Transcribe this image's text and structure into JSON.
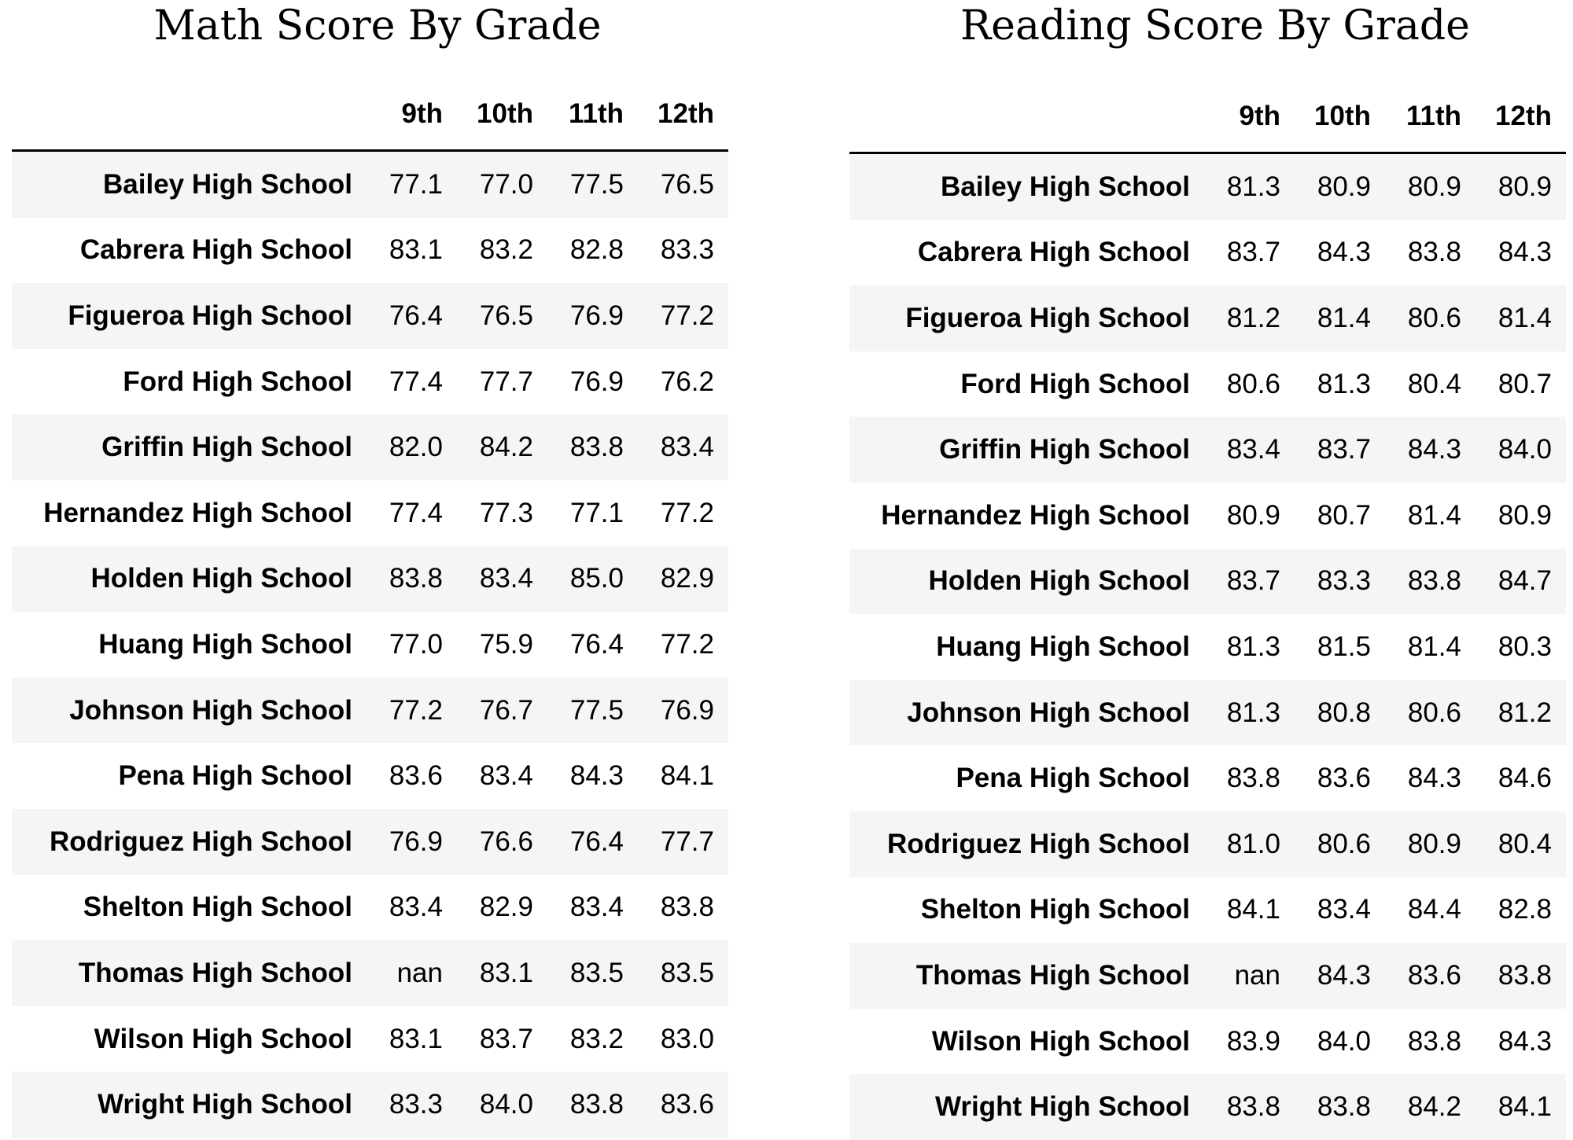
{
  "chart_data": [
    {
      "type": "table",
      "title": "Math Score By Grade",
      "columns": [
        "9th",
        "10th",
        "11th",
        "12th"
      ],
      "rows": [
        {
          "school": "Bailey High School",
          "values": [
            "77.1",
            "77.0",
            "77.5",
            "76.5"
          ]
        },
        {
          "school": "Cabrera High School",
          "values": [
            "83.1",
            "83.2",
            "82.8",
            "83.3"
          ]
        },
        {
          "school": "Figueroa High School",
          "values": [
            "76.4",
            "76.5",
            "76.9",
            "77.2"
          ]
        },
        {
          "school": "Ford High School",
          "values": [
            "77.4",
            "77.7",
            "76.9",
            "76.2"
          ]
        },
        {
          "school": "Griffin High School",
          "values": [
            "82.0",
            "84.2",
            "83.8",
            "83.4"
          ]
        },
        {
          "school": "Hernandez High School",
          "values": [
            "77.4",
            "77.3",
            "77.1",
            "77.2"
          ]
        },
        {
          "school": "Holden High School",
          "values": [
            "83.8",
            "83.4",
            "85.0",
            "82.9"
          ]
        },
        {
          "school": "Huang High School",
          "values": [
            "77.0",
            "75.9",
            "76.4",
            "77.2"
          ]
        },
        {
          "school": "Johnson High School",
          "values": [
            "77.2",
            "76.7",
            "77.5",
            "76.9"
          ]
        },
        {
          "school": "Pena High School",
          "values": [
            "83.6",
            "83.4",
            "84.3",
            "84.1"
          ]
        },
        {
          "school": "Rodriguez High School",
          "values": [
            "76.9",
            "76.6",
            "76.4",
            "77.7"
          ]
        },
        {
          "school": "Shelton High School",
          "values": [
            "83.4",
            "82.9",
            "83.4",
            "83.8"
          ]
        },
        {
          "school": "Thomas High School",
          "values": [
            "nan",
            "83.1",
            "83.5",
            "83.5"
          ]
        },
        {
          "school": "Wilson High School",
          "values": [
            "83.1",
            "83.7",
            "83.2",
            "83.0"
          ]
        },
        {
          "school": "Wright High School",
          "values": [
            "83.3",
            "84.0",
            "83.8",
            "83.6"
          ]
        }
      ]
    },
    {
      "type": "table",
      "title": "Reading Score By Grade",
      "columns": [
        "9th",
        "10th",
        "11th",
        "12th"
      ],
      "rows": [
        {
          "school": "Bailey High School",
          "values": [
            "81.3",
            "80.9",
            "80.9",
            "80.9"
          ]
        },
        {
          "school": "Cabrera High School",
          "values": [
            "83.7",
            "84.3",
            "83.8",
            "84.3"
          ]
        },
        {
          "school": "Figueroa High School",
          "values": [
            "81.2",
            "81.4",
            "80.6",
            "81.4"
          ]
        },
        {
          "school": "Ford High School",
          "values": [
            "80.6",
            "81.3",
            "80.4",
            "80.7"
          ]
        },
        {
          "school": "Griffin High School",
          "values": [
            "83.4",
            "83.7",
            "84.3",
            "84.0"
          ]
        },
        {
          "school": "Hernandez High School",
          "values": [
            "80.9",
            "80.7",
            "81.4",
            "80.9"
          ]
        },
        {
          "school": "Holden High School",
          "values": [
            "83.7",
            "83.3",
            "83.8",
            "84.7"
          ]
        },
        {
          "school": "Huang High School",
          "values": [
            "81.3",
            "81.5",
            "81.4",
            "80.3"
          ]
        },
        {
          "school": "Johnson High School",
          "values": [
            "81.3",
            "80.8",
            "80.6",
            "81.2"
          ]
        },
        {
          "school": "Pena High School",
          "values": [
            "83.8",
            "83.6",
            "84.3",
            "84.6"
          ]
        },
        {
          "school": "Rodriguez High School",
          "values": [
            "81.0",
            "80.6",
            "80.9",
            "80.4"
          ]
        },
        {
          "school": "Shelton High School",
          "values": [
            "84.1",
            "83.4",
            "84.4",
            "82.8"
          ]
        },
        {
          "school": "Thomas High School",
          "values": [
            "nan",
            "84.3",
            "83.6",
            "83.8"
          ]
        },
        {
          "school": "Wilson High School",
          "values": [
            "83.9",
            "84.0",
            "83.8",
            "84.3"
          ]
        },
        {
          "school": "Wright High School",
          "values": [
            "83.8",
            "83.8",
            "84.2",
            "84.1"
          ]
        }
      ]
    }
  ]
}
